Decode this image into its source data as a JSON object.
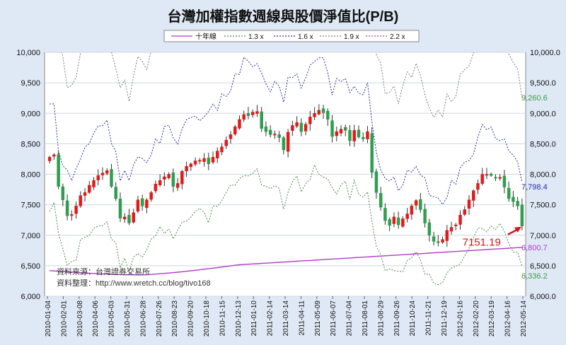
{
  "chart_data": {
    "type": "candlestick",
    "title": "台灣加權指數週線與股價淨值比(P/B)",
    "legend": {
      "placement": "top",
      "items": [
        {
          "name": "十年線",
          "color": "#b03cc8",
          "style": "solid"
        },
        {
          "name": "1.3 x",
          "color": "#4a8a4a",
          "style": "dotted"
        },
        {
          "name": "1.6 x",
          "color": "#2b2b9a",
          "style": "dotted"
        },
        {
          "name": "1.9 x",
          "color": "#7a7a7a",
          "style": "dotted"
        },
        {
          "name": "2.2 x",
          "color": "#c03aa0",
          "style": "dotted"
        }
      ]
    },
    "ylim": [
      6000,
      10000
    ],
    "y_ticks_left": [
      "6,000",
      "6,500",
      "7,000",
      "7,500",
      "8,000",
      "8,500",
      "9,000",
      "9,500",
      "10,000"
    ],
    "y_ticks_right": [
      "6,000.0",
      "6,500.0",
      "7,000.0",
      "7,500.0",
      "8,000.0",
      "8,500.0",
      "9,000.0",
      "9,500.0",
      "10,000.0"
    ],
    "x_ticks": [
      "2010-01-04",
      "2010-02-01",
      "2010-03-08",
      "2010-04-06",
      "2010-05-03",
      "2010-05-31",
      "2010-06-28",
      "2010-07-26",
      "2010-08-23",
      "2010-09-20",
      "2010-10-18",
      "2010-11-15",
      "2010-12-13",
      "2011-01-10",
      "2011-02-14",
      "2011-03-14",
      "2011-04-11",
      "2011-05-09",
      "2011-06-07",
      "2011-07-04",
      "2011-08-01",
      "2011-08-29",
      "2011-09-26",
      "2011-10-24",
      "2011-11-21",
      "2011-12-19",
      "2012-01-16",
      "2012-02-20",
      "2012-03-19",
      "2012-04-16",
      "2012-05-14"
    ],
    "grid": {
      "horizontal": true,
      "vertical": false
    },
    "candles_weekly_close": [
      8280,
      8320,
      7800,
      7580,
      7320,
      7340,
      7480,
      7650,
      7700,
      7820,
      7900,
      7980,
      8020,
      8060,
      7800,
      7600,
      7280,
      7300,
      7200,
      7370,
      7580,
      7480,
      7580,
      7700,
      7840,
      7900,
      7960,
      8000,
      7800,
      7850,
      8050,
      8130,
      8170,
      8220,
      8230,
      8260,
      8170,
      8280,
      8380,
      8450,
      8560,
      8650,
      8780,
      8900,
      8980,
      8960,
      9020,
      9030,
      8750,
      8700,
      8650,
      8660,
      8600,
      8400,
      8690,
      8800,
      8850,
      8700,
      8820,
      8940,
      9000,
      9050,
      9010,
      8900,
      8620,
      8700,
      8740,
      8720,
      8550,
      8720,
      8610,
      8580,
      8700,
      8030,
      7700,
      7460,
      7240,
      7160,
      7300,
      7170,
      7270,
      7350,
      7480,
      7570,
      7420,
      7200,
      7000,
      6900,
      6880,
      6930,
      7080,
      7130,
      7170,
      7330,
      7420,
      7580,
      7730,
      7850,
      8000,
      8000,
      7980,
      7940,
      7950,
      7790,
      7600,
      7550,
      7480,
      7151.19
    ],
    "annotations": [
      {
        "text": "7151.19",
        "color": "#d01818"
      },
      {
        "text": "9,260.6",
        "color": "#3c9a4a"
      },
      {
        "text": "7,798.4",
        "color": "#2a2aa8"
      },
      {
        "text": "6,800.7",
        "color": "#b03cc8"
      },
      {
        "text": "6,336.2",
        "color": "#3c9a4a"
      }
    ],
    "band_end_values": {
      "十年線": 6800.7,
      "1.3 x": 6336.2,
      "1.6 x": 7798.4,
      "1.9 x": 9260.6
    },
    "source_lines": [
      "資料來源：台灣證券交易所",
      "資料整理：http://www.wretch.cc/blog/tivo168"
    ]
  }
}
